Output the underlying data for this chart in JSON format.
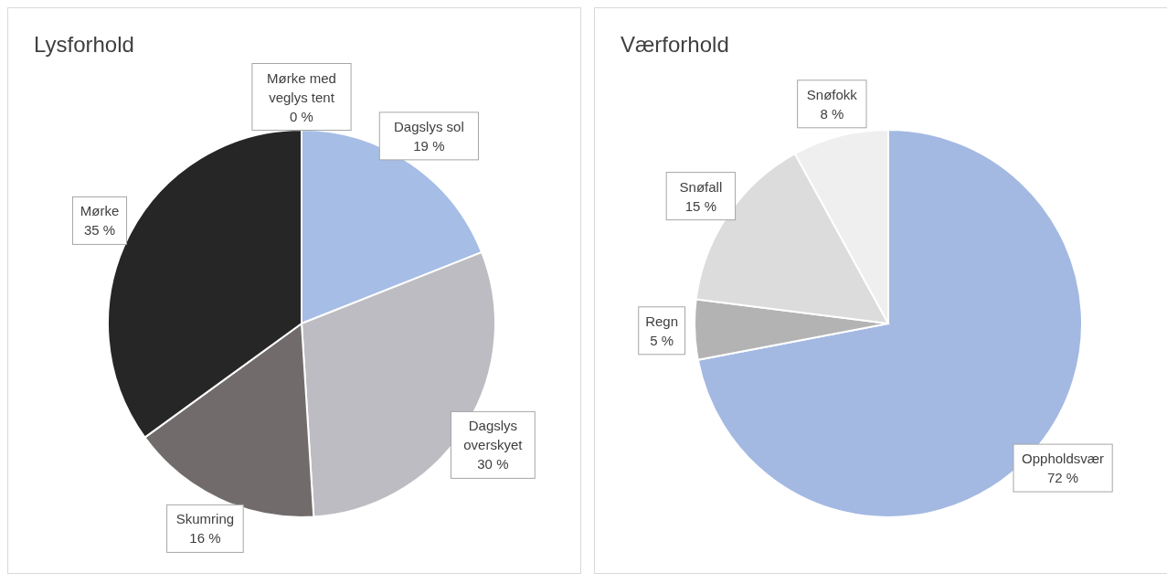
{
  "chart_data": [
    {
      "type": "pie",
      "title": "Lysforhold",
      "categories": [
        "Mørke med veglys tent",
        "Dagslys sol",
        "Dagslys overskyet",
        "Skumring",
        "Mørke"
      ],
      "values": [
        0,
        19,
        30,
        16,
        35
      ],
      "colors": [
        "#404040",
        "#a6bde6",
        "#bdbcc2",
        "#716c6b",
        "#262626"
      ],
      "value_labels": [
        "0 %",
        "19 %",
        "30 %",
        "16 %",
        "35 %"
      ]
    },
    {
      "type": "pie",
      "title": "Værforhold",
      "categories": [
        "Oppholdsvær",
        "Regn",
        "Snøfall",
        "Snøfokk"
      ],
      "values": [
        72,
        5,
        15,
        8
      ],
      "colors": [
        "#a3b9e2",
        "#b3b3b3",
        "#dcdcdc",
        "#efefef"
      ],
      "value_labels": [
        "72 %",
        "5 %",
        "15 %",
        "8 %"
      ]
    }
  ]
}
